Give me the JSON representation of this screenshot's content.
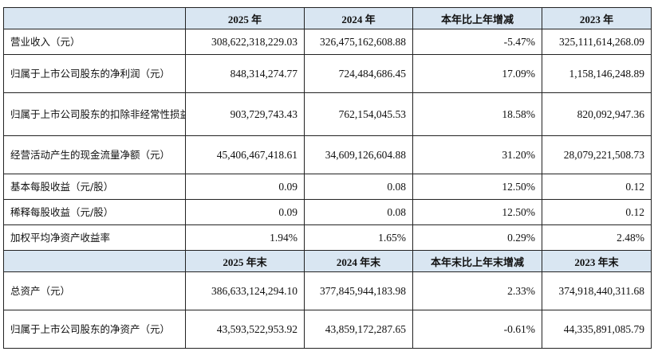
{
  "header1": [
    "",
    "2025 年",
    "2024 年",
    "本年比上年增减",
    "2023 年"
  ],
  "rows1": [
    {
      "label": "营业收入（元）",
      "values": [
        "308,622,318,229.03",
        "326,475,162,608.88",
        "-5.47%",
        "325,111,614,268.09"
      ]
    },
    {
      "label": "归属于上市公司股东的净利润（元）",
      "values": [
        "848,314,274.77",
        "724,484,686.45",
        "17.09%",
        "1,158,146,248.89"
      ]
    },
    {
      "label": "归属于上市公司股东的扣除非经常性损益的净利润（元）",
      "values": [
        "903,729,743.43",
        "762,154,045.53",
        "18.58%",
        "820,092,947.36"
      ]
    },
    {
      "label": "经营活动产生的现金流量净额（元）",
      "values": [
        "45,406,467,418.61",
        "34,609,126,604.88",
        "31.20%",
        "28,079,221,508.73"
      ]
    },
    {
      "label": "基本每股收益（元/股）",
      "values": [
        "0.09",
        "0.08",
        "12.50%",
        "0.12"
      ]
    },
    {
      "label": "稀释每股收益（元/股）",
      "values": [
        "0.09",
        "0.08",
        "12.50%",
        "0.12"
      ]
    },
    {
      "label": "加权平均净资产收益率",
      "values": [
        "1.94%",
        "1.65%",
        "0.29%",
        "2.48%"
      ]
    }
  ],
  "header2": [
    "",
    "2025 年末",
    "2024 年末",
    "本年末比上年末增减",
    "2023 年末"
  ],
  "rows2": [
    {
      "label": "总资产（元）",
      "values": [
        "386,633,124,294.10",
        "377,845,944,183.98",
        "2.33%",
        "374,918,440,311.68"
      ]
    },
    {
      "label": "归属于上市公司股东的净资产（元）",
      "values": [
        "43,593,522,953.92",
        "43,859,172,287.65",
        "-0.61%",
        "44,335,891,085.79"
      ]
    }
  ],
  "colors": {
    "header_bg": "#d9e6f2",
    "border": "#222222"
  }
}
